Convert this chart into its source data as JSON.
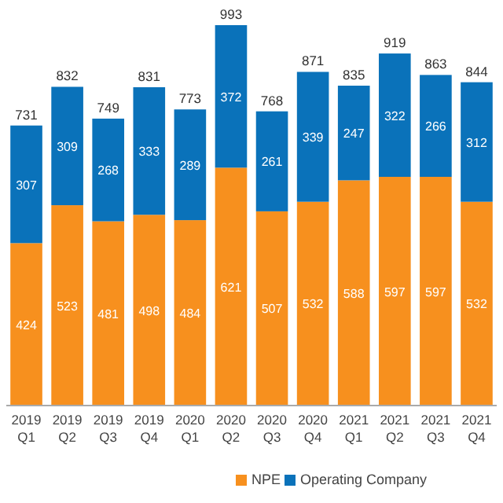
{
  "chart_data": {
    "type": "bar",
    "stacked": true,
    "data_labels": true,
    "legend": "bottom",
    "categories": [
      "2019 Q1",
      "2019 Q2",
      "2019 Q3",
      "2019 Q4",
      "2020 Q1",
      "2020 Q2",
      "2020 Q3",
      "2020 Q4",
      "2021 Q1",
      "2021 Q2",
      "2021 Q3",
      "2021 Q4"
    ],
    "series": [
      {
        "name": "NPE",
        "color": "#f7901e",
        "values": [
          424,
          523,
          481,
          498,
          484,
          621,
          507,
          532,
          588,
          597,
          597,
          532
        ]
      },
      {
        "name": "Operating Company",
        "color": "#0a72ba",
        "values": [
          307,
          309,
          268,
          333,
          289,
          372,
          261,
          339,
          247,
          322,
          266,
          312
        ]
      }
    ],
    "totals": [
      "731",
      "832",
      "749",
      "831",
      "773",
      "993",
      "768",
      "871",
      "835",
      "919",
      "863",
      "844"
    ]
  }
}
